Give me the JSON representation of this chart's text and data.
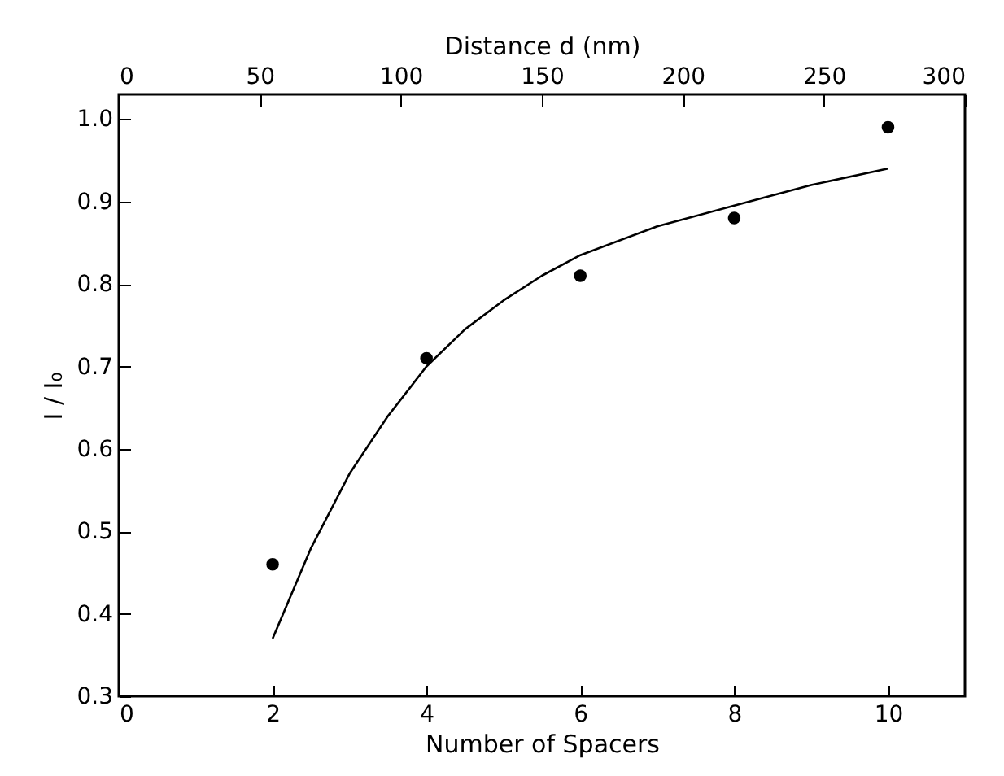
{
  "chart_data": {
    "type": "scatter",
    "xlabel": "Number of Spacers",
    "x2label": "Distance d (nm)",
    "ylabel": "I / I₀",
    "xlim": [
      0,
      11
    ],
    "xticks": [
      0,
      2,
      4,
      6,
      8,
      10
    ],
    "x2lim": [
      0,
      300
    ],
    "x2ticks": [
      0,
      50,
      100,
      150,
      200,
      250,
      300
    ],
    "ylim": [
      0.3,
      1.03
    ],
    "yticks": [
      0.3,
      0.4,
      0.5,
      0.6,
      0.7,
      0.8,
      0.9,
      {
        "value": 1,
        "label": "1.0"
      }
    ],
    "grid": false,
    "series": [
      {
        "marker": "circle",
        "color": "#000000",
        "x": [
          2,
          4,
          6,
          8,
          10
        ],
        "values": [
          0.46,
          0.71,
          0.81,
          0.88,
          0.99
        ]
      },
      {
        "type": "line",
        "line_style": "solid",
        "color": "#000000",
        "x": [
          2,
          2.5,
          3,
          3.5,
          4,
          4.5,
          5,
          5.5,
          6,
          7,
          8,
          9,
          10
        ],
        "values": [
          0.37,
          0.48,
          0.57,
          0.64,
          0.7,
          0.745,
          0.78,
          0.81,
          0.835,
          0.87,
          0.895,
          0.92,
          0.94
        ]
      }
    ]
  }
}
